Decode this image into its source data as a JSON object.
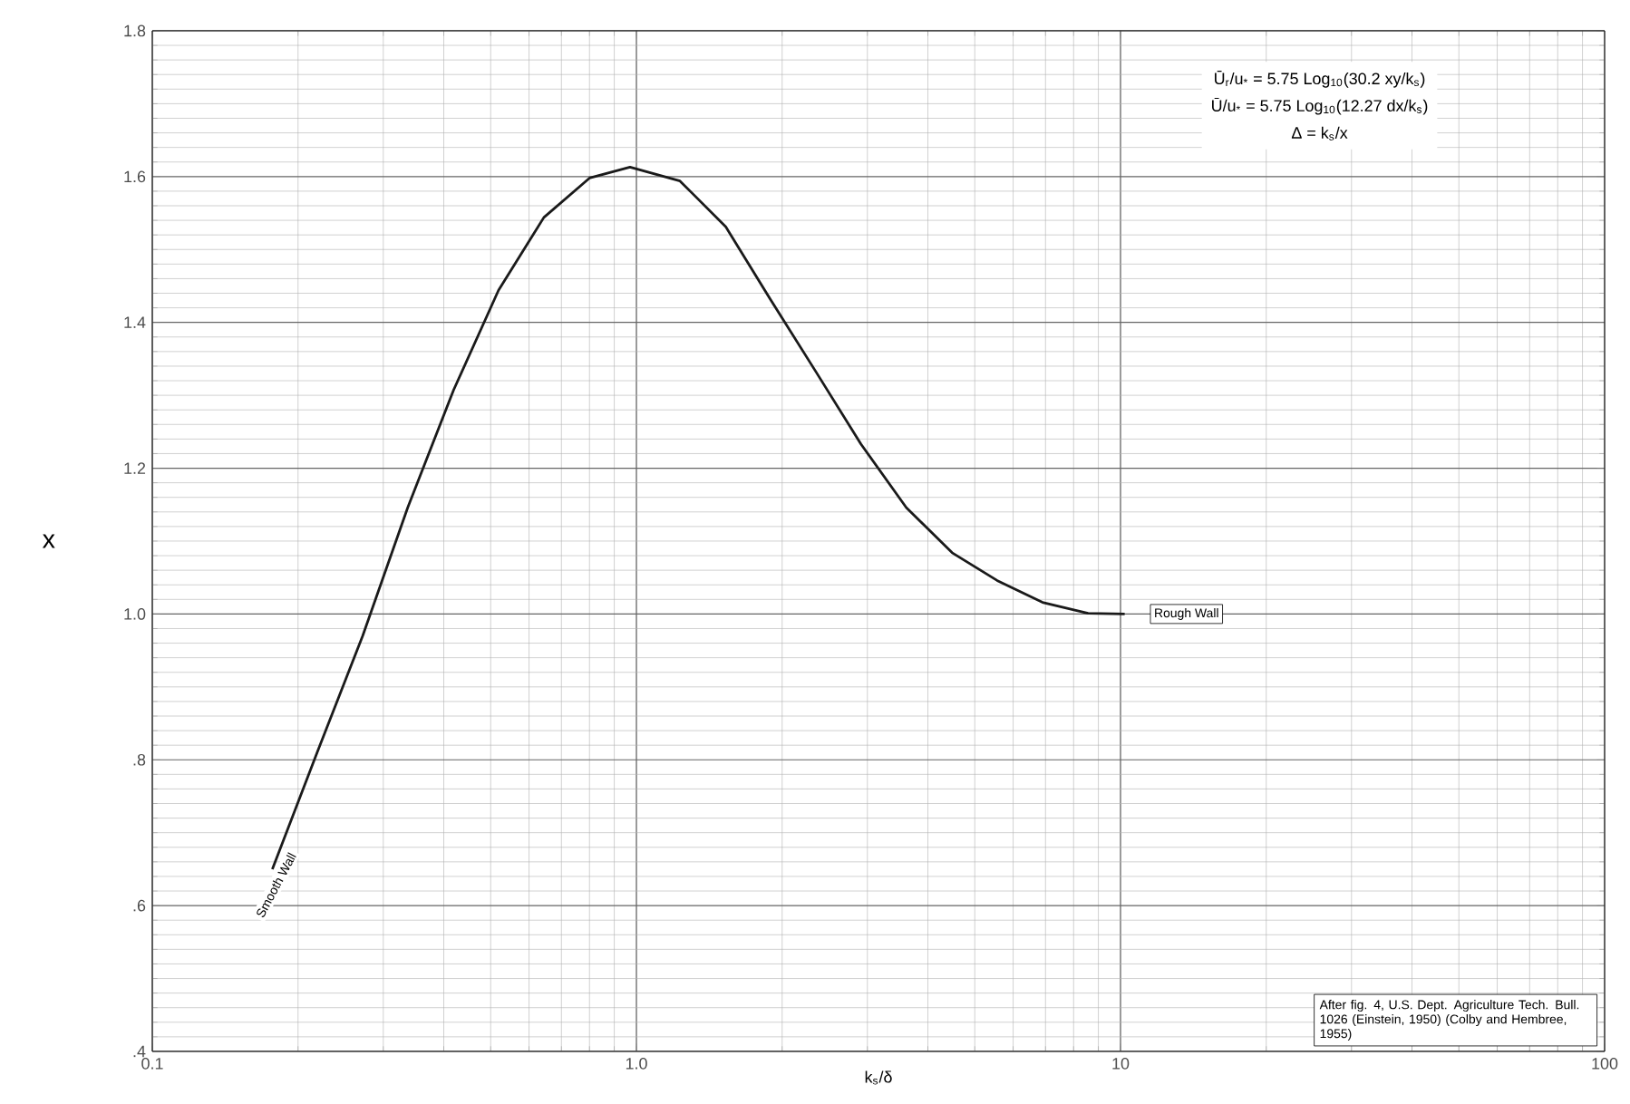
{
  "chart_data": {
    "type": "line",
    "xlabel": "k$_{s}$/δ",
    "ylabel": "x",
    "log": "x",
    "x": [
      0.177,
      0.219,
      0.272,
      0.337,
      0.419,
      0.519,
      0.644,
      0.8,
      0.97,
      1.23,
      1.53,
      1.89,
      2.35,
      2.91,
      3.61,
      4.49,
      5.56,
      6.9,
      8.57,
      10.2
    ],
    "series": [
      {
        "color": "#1a1a1a",
        "values": [
          0.65,
          0.81,
          0.97,
          1.146,
          1.307,
          1.444,
          1.544,
          1.598,
          1.613,
          1.594,
          1.531,
          1.432,
          1.332,
          1.233,
          1.146,
          1.084,
          1.046,
          1.016,
          1.001,
          1.0
        ]
      }
    ],
    "xlim": [
      0.1,
      100
    ],
    "ylim": [
      0.4,
      1.8
    ],
    "xticks": [
      {
        "value": 0.1,
        "label": "0.1"
      },
      {
        "value": 1,
        "label": "1.0"
      },
      10,
      100
    ],
    "yticks": [
      {
        "value": 0.4,
        "label": ".4"
      },
      {
        "value": 0.6,
        "label": ".6"
      },
      {
        "value": 0.8,
        "label": ".8"
      },
      {
        "value": 1.0,
        "label": "1.0"
      },
      1.2,
      1.4,
      1.6,
      1.8
    ],
    "grid": true,
    "marker": "none",
    "line_style": "solid",
    "annotations": [
      {
        "text": "Smooth Wall",
        "x": 0.19,
        "y": 0.68
      },
      {
        "text": "Rough Wall",
        "x": 10.2,
        "y": 1.0
      },
      "Ū$_{r}$/u$_{*}$ = 5.75 Log$_{10}$(30.2 xy/k$_{s}$)",
      "Ū/u$_{*}$ = 5.75 Log$_{10}$(12.27 dx/k$_{s}$)",
      "Δ = k$_{s}$/x",
      "After fig. 4, U.S. Dept. Agriculture Tech. Bull. 1026 (Einstein, 1950) (Colby and Hembree, 1955)"
    ]
  }
}
